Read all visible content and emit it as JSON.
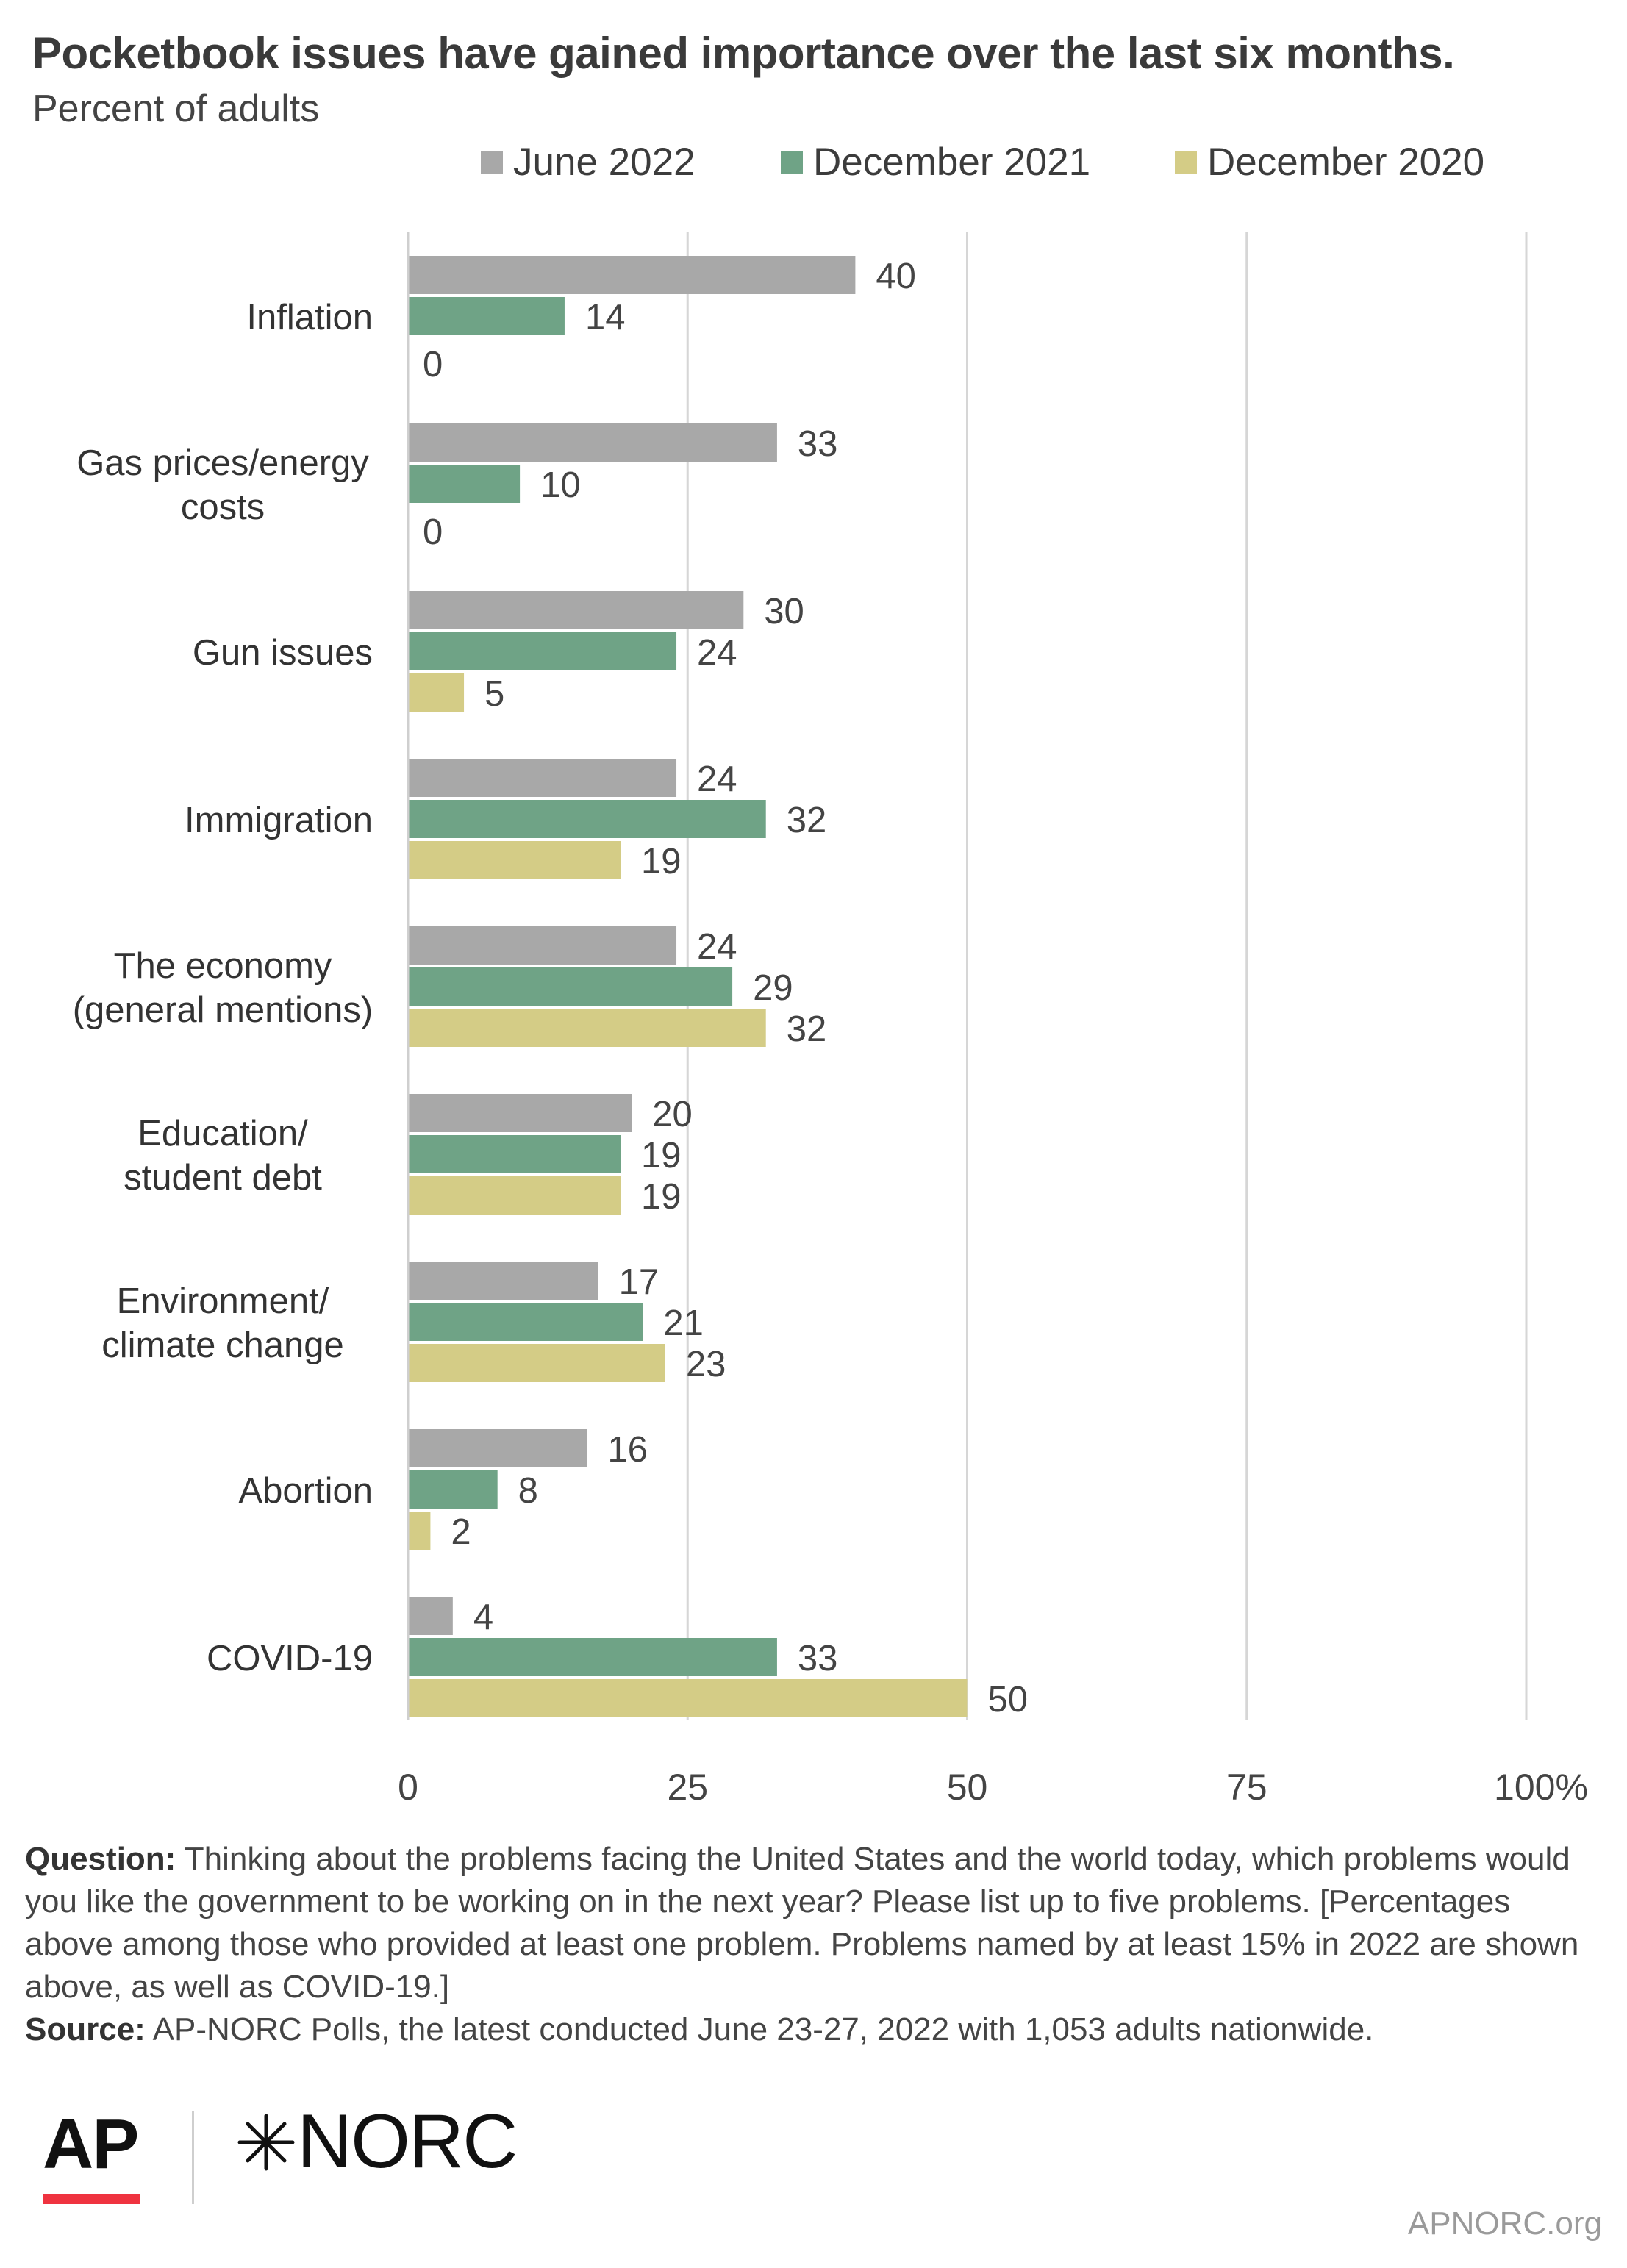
{
  "header": {
    "title": "Pocketbook issues have gained importance over the last six months.",
    "subtitle": "Percent of adults"
  },
  "colors": {
    "june_2022": "#a8a8a8",
    "december_2021": "#6fa386",
    "december_2020": "#d4cc86",
    "gridline": "#d6d6d6",
    "ap_red": "#ef3340"
  },
  "chart_data": {
    "type": "bar",
    "orientation": "horizontal",
    "categories": [
      [
        "Inflation"
      ],
      [
        "Gas prices/energy",
        "costs"
      ],
      [
        "Gun issues"
      ],
      [
        "Immigration"
      ],
      [
        "The economy",
        "(general mentions)"
      ],
      [
        "Education/",
        "student debt"
      ],
      [
        "Environment/",
        "climate change"
      ],
      [
        "Abortion"
      ],
      [
        "COVID-19"
      ]
    ],
    "series": [
      {
        "name": "June 2022",
        "values": [
          40,
          33,
          30,
          24,
          24,
          20,
          17,
          16,
          4
        ]
      },
      {
        "name": "December 2021",
        "values": [
          14,
          10,
          24,
          32,
          29,
          19,
          21,
          8,
          33
        ]
      },
      {
        "name": "December 2020",
        "values": [
          0,
          0,
          5,
          19,
          32,
          19,
          23,
          2,
          50
        ]
      }
    ],
    "xlim": [
      0,
      100
    ],
    "xticks": [
      "0",
      "25",
      "50",
      "75",
      "100%"
    ],
    "grid": true,
    "legend_position": "top"
  },
  "footer": {
    "question_label": "Question:",
    "question_text": " Thinking about the problems facing the United States and the world today, which problems would you like the government to be working on in the next year? Please list up to five problems. [Percentages above among those who provided at least one problem. Problems named by at least 15% in 2022 are shown above, as well as COVID-19.]",
    "source_label": "Source:",
    "source_text": "  AP-NORC Polls, the latest conducted June 23-27, 2022 with 1,053 adults nationwide."
  },
  "branding": {
    "ap_logo": "AP",
    "norc_logo": "NORC",
    "norc_icon": "norc-star-icon",
    "site": "APNORC.org"
  }
}
